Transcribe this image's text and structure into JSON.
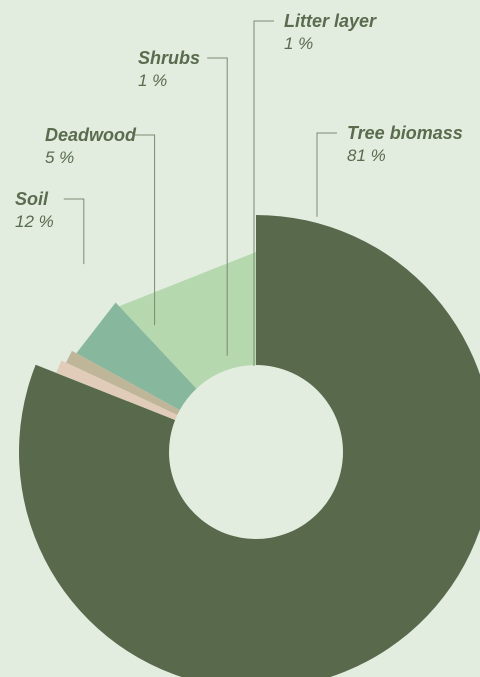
{
  "chart_data": {
    "type": "donut",
    "title": "",
    "unit": "%",
    "series": [
      {
        "name": "Tree biomass",
        "value": 81,
        "label": "81 %",
        "color": "#58694c"
      },
      {
        "name": "Soil",
        "value": 12,
        "label": "12 %",
        "color": "#b5d8ae"
      },
      {
        "name": "Deadwood",
        "value": 5,
        "label": "5 %",
        "color": "#87b79c"
      },
      {
        "name": "Shrubs",
        "value": 1,
        "label": "1 %",
        "color": "#bfb69a"
      },
      {
        "name": "Litter layer",
        "value": 1,
        "label": "1 %",
        "color": "#e0ccb9"
      }
    ],
    "label_text_color": "#5a6b4e",
    "leader_line_color": "#7a8a72"
  }
}
